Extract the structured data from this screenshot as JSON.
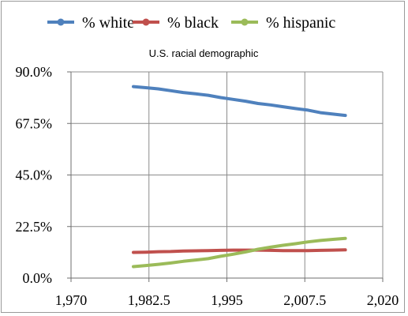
{
  "chart_data": {
    "type": "line",
    "title": "U.S. racial demographic",
    "xlabel": "",
    "ylabel": "",
    "xlim": [
      1970,
      2020
    ],
    "ylim": [
      0,
      90
    ],
    "x_ticks": [
      1970,
      1982.5,
      1995,
      2007.5,
      2020
    ],
    "x_tick_labels": [
      "1,970",
      "1,982.5",
      "1,995",
      "2,007.5",
      "2,020"
    ],
    "y_ticks": [
      0,
      22.5,
      45,
      67.5,
      90
    ],
    "y_tick_labels": [
      "0.0%",
      "22.5%",
      "45.0%",
      "67.5%",
      "90.0%"
    ],
    "grid": true,
    "legend_position": "top",
    "series": [
      {
        "name": "% white",
        "color": "#4f81bd",
        "x": [
          1980,
          1982,
          1984,
          1986,
          1988,
          1990,
          1992,
          1994,
          1996,
          1998,
          2000,
          2002,
          2004,
          2006,
          2008,
          2010,
          2012,
          2014
        ],
        "y": [
          83.6,
          83.1,
          82.6,
          81.8,
          81.0,
          80.4,
          79.8,
          78.8,
          78.0,
          77.2,
          76.2,
          75.6,
          74.8,
          74.0,
          73.3,
          72.2,
          71.6,
          71.0
        ]
      },
      {
        "name": "% black",
        "color": "#c0504d",
        "x": [
          1980,
          1982,
          1984,
          1986,
          1988,
          1990,
          1992,
          1994,
          1996,
          1998,
          2000,
          2002,
          2004,
          2006,
          2008,
          2010,
          2012,
          2014
        ],
        "y": [
          11.2,
          11.3,
          11.5,
          11.6,
          11.8,
          11.9,
          12.0,
          12.1,
          12.2,
          12.2,
          12.2,
          12.1,
          12.0,
          12.0,
          12.0,
          12.1,
          12.2,
          12.3
        ]
      },
      {
        "name": "% hispanic",
        "color": "#9bbb59",
        "x": [
          1980,
          1982,
          1984,
          1986,
          1988,
          1990,
          1992,
          1994,
          1996,
          1998,
          2000,
          2002,
          2004,
          2006,
          2008,
          2010,
          2012,
          2014
        ],
        "y": [
          5.0,
          5.5,
          6.0,
          6.6,
          7.3,
          7.9,
          8.5,
          9.5,
          10.4,
          11.4,
          12.6,
          13.5,
          14.3,
          15.0,
          15.8,
          16.4,
          16.9,
          17.3
        ]
      }
    ]
  }
}
